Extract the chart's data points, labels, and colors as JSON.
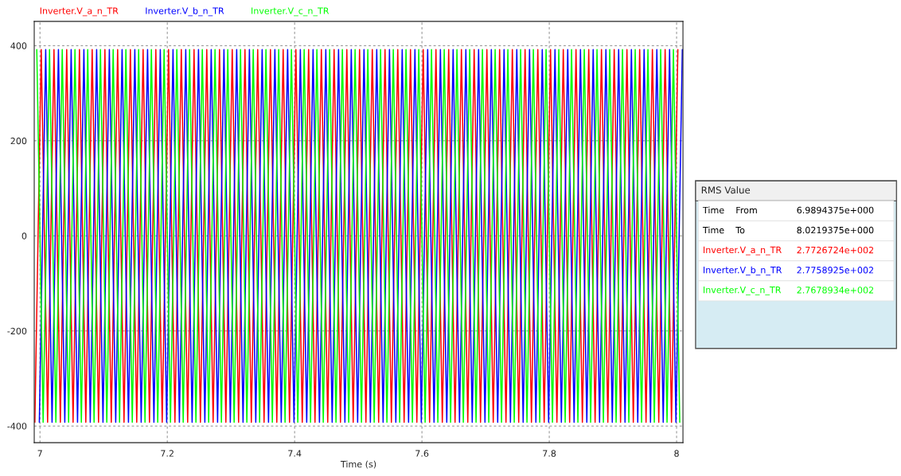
{
  "chart_data": {
    "type": "line",
    "xlabel": "Time (s)",
    "xlim": [
      6.991,
      8.01
    ],
    "ylim": [
      -435,
      451
    ],
    "xticks": [
      7,
      7.2,
      7.4,
      7.6,
      7.8,
      8
    ],
    "yticks": [
      -400,
      -200,
      0,
      200,
      400
    ],
    "grid": true,
    "legend": "top left",
    "marker": "none",
    "line_style": "solid",
    "annotations": [
      "RMS Value",
      "Time    From",
      "6.9894375e+000",
      "Time    To",
      "8.0219375e+000",
      "Inverter.V_a_n_TR",
      "2.7726724e+002",
      "Inverter.V_b_n_TR",
      "2.7758925e+002",
      "Inverter.V_c_n_TR",
      "2.7678934e+002"
    ],
    "series": [
      {
        "name": "Inverter.V_a_n_TR",
        "color": "#ff0000",
        "x": [
          6.992,
          7.002,
          7.012,
          7.022,
          7.032,
          7.042,
          7.052,
          7.062,
          7.072,
          7.082,
          7.092,
          7.102,
          7.112,
          7.122,
          7.132,
          7.142,
          7.152,
          7.162,
          7.172,
          7.182,
          7.192,
          7.202,
          7.212,
          7.222,
          7.232,
          7.242,
          7.252,
          7.262,
          7.272,
          7.282,
          7.292,
          7.302,
          7.312,
          7.322,
          7.332,
          7.342,
          7.352,
          7.362,
          7.372,
          7.382,
          7.392,
          7.402,
          7.412,
          7.422,
          7.432,
          7.442,
          7.452,
          7.462,
          7.472,
          7.482,
          7.492,
          7.502,
          7.512,
          7.522,
          7.532,
          7.542,
          7.552,
          7.562,
          7.572,
          7.582,
          7.592,
          7.602,
          7.612,
          7.622,
          7.632,
          7.642,
          7.652,
          7.662,
          7.672,
          7.682,
          7.692,
          7.702,
          7.712,
          7.722,
          7.732,
          7.742,
          7.752,
          7.762,
          7.772,
          7.782,
          7.792,
          7.802,
          7.812,
          7.822,
          7.832,
          7.842,
          7.852,
          7.862,
          7.872,
          7.882,
          7.892,
          7.902,
          7.912,
          7.922,
          7.932,
          7.942,
          7.952,
          7.962,
          7.972,
          7.982,
          7.992,
          8.002
        ],
        "values": [
          -392,
          392,
          -392,
          392,
          -392,
          392,
          -392,
          392,
          -392,
          392,
          -392,
          392,
          -392,
          392,
          -392,
          392,
          -392,
          392,
          -392,
          392,
          -392,
          392,
          -392,
          392,
          -392,
          392,
          -392,
          392,
          -392,
          392,
          -392,
          392,
          -392,
          392,
          -392,
          392,
          -392,
          392,
          -392,
          392,
          -392,
          392,
          -392,
          392,
          -392,
          392,
          -392,
          392,
          -392,
          392,
          -392,
          392,
          -392,
          392,
          -392,
          392,
          -392,
          392,
          -392,
          392,
          -392,
          392,
          -392,
          392,
          -392,
          392,
          -392,
          392,
          -392,
          392,
          -392,
          392,
          -392,
          392,
          -392,
          392,
          -392,
          392,
          -392,
          392,
          -392,
          392,
          -392,
          392,
          -392,
          392,
          -392,
          392,
          -392,
          392,
          -392,
          392,
          -392,
          392,
          -392,
          392,
          -392,
          392,
          -392,
          392,
          -392,
          392
        ]
      },
      {
        "name": "Inverter.V_b_n_TR",
        "color": "#0000ff",
        "x": [
          6.999,
          7.009,
          7.019,
          7.029,
          7.039,
          7.049,
          7.059,
          7.069,
          7.079,
          7.089,
          7.099,
          7.109,
          7.119,
          7.129,
          7.139,
          7.149,
          7.159,
          7.169,
          7.179,
          7.189,
          7.199,
          7.209,
          7.219,
          7.229,
          7.239,
          7.249,
          7.259,
          7.269,
          7.279,
          7.289,
          7.299,
          7.309,
          7.319,
          7.329,
          7.339,
          7.349,
          7.359,
          7.369,
          7.379,
          7.389,
          7.399,
          7.409,
          7.419,
          7.429,
          7.439,
          7.449,
          7.459,
          7.469,
          7.479,
          7.489,
          7.499,
          7.509,
          7.519,
          7.529,
          7.539,
          7.549,
          7.559,
          7.569,
          7.579,
          7.589,
          7.599,
          7.609,
          7.619,
          7.629,
          7.639,
          7.649,
          7.659,
          7.669,
          7.679,
          7.689,
          7.699,
          7.709,
          7.719,
          7.729,
          7.739,
          7.749,
          7.759,
          7.769,
          7.779,
          7.789,
          7.799,
          7.809,
          7.819,
          7.829,
          7.839,
          7.849,
          7.859,
          7.869,
          7.879,
          7.889,
          7.899,
          7.909,
          7.919,
          7.929,
          7.939,
          7.949,
          7.959,
          7.969,
          7.979,
          7.989,
          7.999,
          8.009
        ],
        "values": [
          -392,
          392,
          -392,
          392,
          -392,
          392,
          -392,
          392,
          -392,
          392,
          -392,
          392,
          -392,
          392,
          -392,
          392,
          -392,
          392,
          -392,
          392,
          -392,
          392,
          -392,
          392,
          -392,
          392,
          -392,
          392,
          -392,
          392,
          -392,
          392,
          -392,
          392,
          -392,
          392,
          -392,
          392,
          -392,
          392,
          -392,
          392,
          -392,
          392,
          -392,
          392,
          -392,
          392,
          -392,
          392,
          -392,
          392,
          -392,
          392,
          -392,
          392,
          -392,
          392,
          -392,
          392,
          -392,
          392,
          -392,
          392,
          -392,
          392,
          -392,
          392,
          -392,
          392,
          -392,
          392,
          -392,
          392,
          -392,
          392,
          -392,
          392,
          -392,
          392,
          -392,
          392,
          -392,
          392,
          -392,
          392,
          -392,
          392,
          -392,
          392,
          -392,
          392,
          -392,
          392,
          -392,
          392,
          -392,
          392,
          -392,
          392,
          -392,
          392
        ]
      },
      {
        "name": "Inverter.V_c_n_TR",
        "color": "#00ff00",
        "x": [
          6.995,
          7.005,
          7.015,
          7.025,
          7.035,
          7.045,
          7.055,
          7.065,
          7.075,
          7.085,
          7.095,
          7.105,
          7.115,
          7.125,
          7.135,
          7.145,
          7.155,
          7.165,
          7.175,
          7.185,
          7.195,
          7.205,
          7.215,
          7.225,
          7.235,
          7.245,
          7.255,
          7.265,
          7.275,
          7.285,
          7.295,
          7.305,
          7.315,
          7.325,
          7.335,
          7.345,
          7.355,
          7.365,
          7.375,
          7.385,
          7.395,
          7.405,
          7.415,
          7.425,
          7.435,
          7.445,
          7.455,
          7.465,
          7.475,
          7.485,
          7.495,
          7.505,
          7.515,
          7.525,
          7.535,
          7.545,
          7.555,
          7.565,
          7.575,
          7.585,
          7.595,
          7.605,
          7.615,
          7.625,
          7.635,
          7.645,
          7.655,
          7.665,
          7.675,
          7.685,
          7.695,
          7.705,
          7.715,
          7.725,
          7.735,
          7.745,
          7.755,
          7.765,
          7.775,
          7.785,
          7.795,
          7.805,
          7.815,
          7.825,
          7.835,
          7.845,
          7.855,
          7.865,
          7.875,
          7.885,
          7.895,
          7.905,
          7.915,
          7.925,
          7.935,
          7.945,
          7.955,
          7.965,
          7.975,
          7.985,
          7.995,
          8.005
        ],
        "values": [
          392,
          -392,
          392,
          -392,
          392,
          -392,
          392,
          -392,
          392,
          -392,
          392,
          -392,
          392,
          -392,
          392,
          -392,
          392,
          -392,
          392,
          -392,
          392,
          -392,
          392,
          -392,
          392,
          -392,
          392,
          -392,
          392,
          -392,
          392,
          -392,
          392,
          -392,
          392,
          -392,
          392,
          -392,
          392,
          -392,
          392,
          -392,
          392,
          -392,
          392,
          -392,
          392,
          -392,
          392,
          -392,
          392,
          -392,
          392,
          -392,
          392,
          -392,
          392,
          -392,
          392,
          -392,
          392,
          -392,
          392,
          -392,
          392,
          -392,
          392,
          -392,
          392,
          -392,
          392,
          -392,
          392,
          -392,
          392,
          -392,
          392,
          -392,
          392,
          -392,
          392,
          -392,
          392,
          -392,
          392,
          -392,
          392,
          -392,
          392,
          -392,
          392,
          -392,
          392,
          -392,
          392,
          -392,
          392,
          -392,
          392,
          -392,
          392,
          -392
        ]
      }
    ]
  }
}
